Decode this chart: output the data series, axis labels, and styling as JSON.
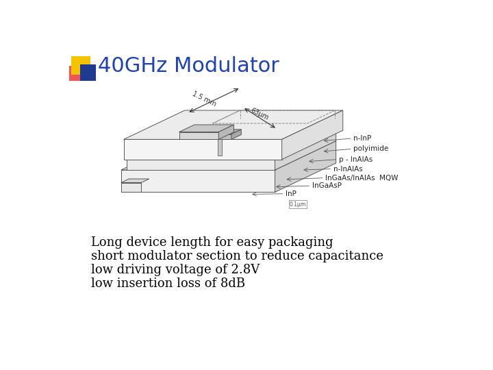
{
  "title": "40GHz Modulator",
  "title_color": "#2244AA",
  "title_fontsize": 22,
  "title_bold": false,
  "background_color": "#FFFFFF",
  "bullet_lines": [
    "Long device length for easy packaging",
    "short modulator section to reduce capacitance",
    "low driving voltage of 2.8V",
    "low insertion loss of 8dB"
  ],
  "bullet_fontsize": 13,
  "bullet_color": "#000000",
  "logo_colors": {
    "yellow": "#F5C400",
    "red": "#EE4444",
    "blue": "#1F3A8F"
  },
  "diagram": {
    "line_color": "#555555",
    "face_color_top": "#E8E8E8",
    "face_color_front": "#F2F2F2",
    "face_color_right": "#D5D5D5",
    "face_color_mid_top": "#DDDDDD",
    "electrode_color": "#AAAAAA"
  }
}
